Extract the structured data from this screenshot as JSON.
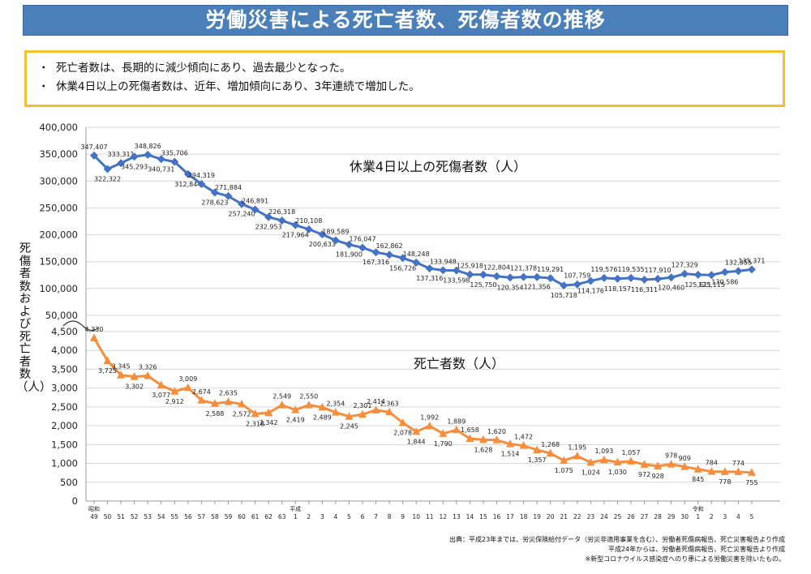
{
  "page": {
    "title": "労働災害による死亡者数、死傷者数の推移",
    "bullets": [
      "死亡者数は、長期的に減少傾向にあり、過去最少となった。",
      "休業4日以上の死傷者数は、近年、増加傾向にあり、3年連続で増加した。"
    ],
    "bullet_mark": "・",
    "y_axis_title": "死傷者数および死亡者数（人）",
    "footer": [
      "出典：平成23年までは、労災保険給付データ（労災非適用事業を含む）、労働者死傷病報告、死亡災害報告より作成",
      "平成24年からは、労働者死傷病報告、死亡災害報告より作成",
      "※新型コロナウイルス感染症へのり患による労働災害を除いたもの。"
    ]
  },
  "chart_data": {
    "type": "line",
    "x_labels": [
      "49",
      "50",
      "51",
      "52",
      "53",
      "54",
      "55",
      "56",
      "57",
      "58",
      "59",
      "60",
      "61",
      "62",
      "63",
      "1",
      "2",
      "3",
      "4",
      "5",
      "6",
      "7",
      "8",
      "9",
      "10",
      "11",
      "12",
      "13",
      "14",
      "15",
      "16",
      "17",
      "18",
      "19",
      "20",
      "21",
      "22",
      "23",
      "24",
      "25",
      "26",
      "27",
      "28",
      "29",
      "30",
      "1",
      "2",
      "3",
      "4",
      "5"
    ],
    "era_labels": [
      {
        "text": "昭和",
        "index": 0
      },
      {
        "text": "平成",
        "index": 15
      },
      {
        "text": "令和",
        "index": 45
      }
    ],
    "upper_axis": {
      "range": [
        50000,
        400000
      ],
      "ticks": [
        "400,000",
        "350,000",
        "300,000",
        "250,000",
        "200,000",
        "150,000",
        "100,000",
        "50,000"
      ],
      "tick_values": [
        400000,
        350000,
        300000,
        250000,
        200000,
        150000,
        100000,
        50000
      ]
    },
    "lower_axis": {
      "range": [
        0,
        4500
      ],
      "ticks": [
        "4,500",
        "4,000",
        "3,500",
        "3,000",
        "2,500",
        "2,000",
        "1,500",
        "1,000",
        "500",
        "0"
      ],
      "tick_values": [
        4500,
        4000,
        3500,
        3000,
        2500,
        2000,
        1500,
        1000,
        500,
        0
      ]
    },
    "axis_break": true,
    "series": [
      {
        "name": "休業4日以上の死傷者数（人）",
        "color": "#4472c4",
        "marker": "diamond",
        "values": [
          347407,
          322322,
          333311,
          345293,
          348826,
          340731,
          335706,
          312844,
          294319,
          278623,
          271884,
          257240,
          246891,
          232953,
          226318,
          217964,
          210108,
          200633,
          189589,
          181900,
          176047,
          167316,
          162862,
          156726,
          148248,
          137316,
          133948,
          133598,
          125918,
          125750,
          122804,
          120354,
          121378,
          121356,
          119291,
          105718,
          107759,
          114176,
          119576,
          118157,
          119535,
          116311,
          117910,
          120460,
          127329,
          125611,
          125115,
          130586,
          132355,
          135371
        ],
        "labels": [
          "347,407",
          "322,322",
          "333,311",
          "345,293",
          "348,826",
          "340,731",
          "335,706",
          "312,844",
          "294,319",
          "278,623",
          "271,884",
          "257,240",
          "246,891",
          "232,953",
          "226,318",
          "217,964",
          "210,108",
          "200,633",
          "189,589",
          "181,900",
          "176,047",
          "167,316",
          "162,862",
          "156,726",
          "148,248",
          "137,316",
          "133,948",
          "133,598",
          "125,918",
          "125,750",
          "122,804",
          "120,354",
          "121,378",
          "121,356",
          "119,291",
          "105,718",
          "107,759",
          "114,176",
          "119,576",
          "118,157",
          "119,535",
          "116,311",
          "117,910",
          "120,460",
          "127,329",
          "125,611",
          "125,115",
          "130,586",
          "132,355",
          "135,371"
        ]
      },
      {
        "name": "死亡者数（人）",
        "color": "#f58d3d",
        "marker": "triangle",
        "values": [
          4330,
          3725,
          3345,
          3302,
          3326,
          3077,
          2912,
          3009,
          2674,
          2588,
          2635,
          2572,
          2318,
          2342,
          2549,
          2419,
          2550,
          2489,
          2354,
          2245,
          2301,
          2414,
          2363,
          2078,
          1844,
          1992,
          1790,
          1889,
          1658,
          1628,
          1620,
          1514,
          1472,
          1357,
          1268,
          1075,
          1195,
          1024,
          1093,
          1030,
          1057,
          972,
          928,
          978,
          909,
          845,
          784,
          778,
          774,
          755
        ],
        "labels": [
          "4,330",
          "3,725",
          "3,345",
          "3,302",
          "3,326",
          "3,077",
          "2,912",
          "3,009",
          "2,674",
          "2,588",
          "2,635",
          "2,572",
          "2,318",
          "2,342",
          "2,549",
          "2,419",
          "2,550",
          "2,489",
          "2,354",
          "2,245",
          "2,301",
          "2,414",
          "2,363",
          "2,078",
          "1,844",
          "1,992",
          "1,790",
          "1,889",
          "1,658",
          "1,628",
          "1,620",
          "1,514",
          "1,472",
          "1,357",
          "1,268",
          "1,075",
          "1,195",
          "1,024",
          "1,093",
          "1,030",
          "1,057",
          "972",
          "928",
          "978",
          "909",
          "845",
          "784",
          "778",
          "774",
          "755"
        ]
      }
    ],
    "grid": true,
    "legend": "in-plot labels"
  }
}
